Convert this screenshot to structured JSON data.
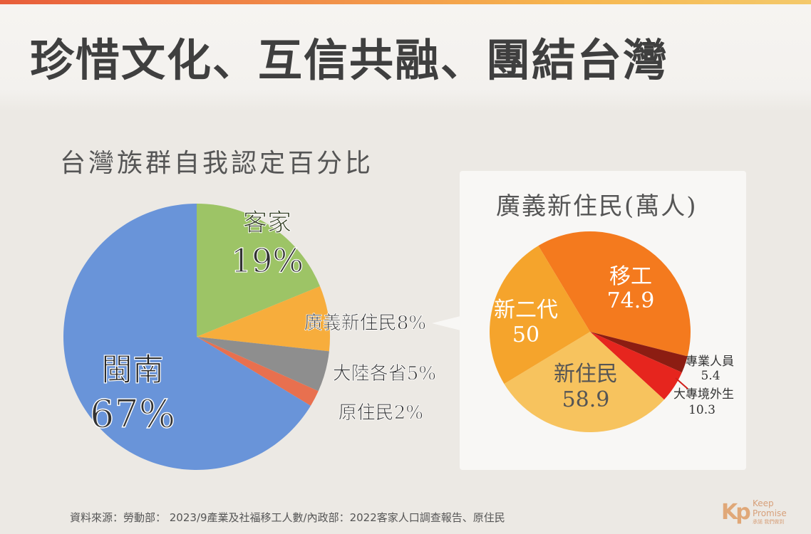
{
  "title": "珍惜文化、互信共融、團結台灣",
  "source_note": "資料來源：勞動部： 2023/9產業及社福移工人數/內政部：2022客家人口調查報告、原住民",
  "logo": {
    "line1": "Keep",
    "line2": "Promise",
    "sub": "承諾 我們做到",
    "mark": "Kp"
  },
  "chart_data": [
    {
      "type": "pie",
      "title": "台灣族群自我認定百分比",
      "categories": [
        "客家",
        "廣義新住民",
        "大陸各省",
        "原住民",
        "閩南"
      ],
      "values": [
        19,
        8,
        5,
        2,
        67
      ],
      "labels": [
        "19%",
        "廣義新住民8%",
        "大陸各省5%",
        "原住民2%",
        "67%"
      ],
      "colors": [
        "#9dc466",
        "#f7ad3c",
        "#8e8e8e",
        "#e8704f",
        "#6994d9"
      ]
    },
    {
      "type": "pie",
      "title": "廣義新住民(萬人)",
      "categories": [
        "移工",
        "專業人員",
        "大專境外生",
        "新住民",
        "新二代"
      ],
      "values": [
        74.9,
        5.4,
        10.3,
        58.9,
        50
      ],
      "labels": [
        "74.9",
        "5.4",
        "10.3",
        "58.9",
        "50"
      ],
      "colors": [
        "#f47a1e",
        "#8c1d12",
        "#e6251e",
        "#f7c35e",
        "#f5a42c"
      ]
    }
  ]
}
